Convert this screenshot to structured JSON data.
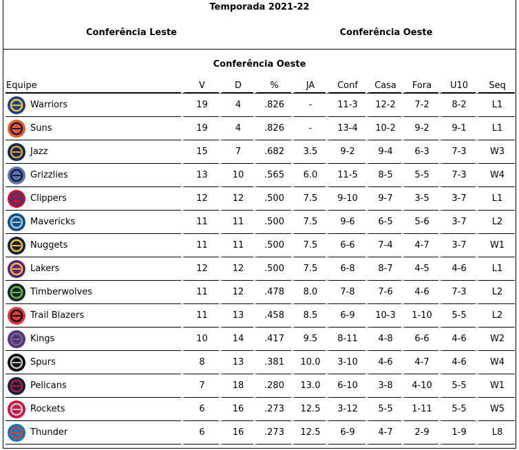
{
  "season_title": "Temporada 2021-22",
  "conference_tabs": {
    "east": "Conferência Leste",
    "west": "Conferência Oeste"
  },
  "section_title": "Conferência Oeste",
  "columns": [
    "Equipe",
    "V",
    "D",
    "%",
    "JA",
    "Conf",
    "Casa",
    "Fora",
    "U10",
    "Seq"
  ],
  "teams": [
    {
      "name": "Warriors",
      "logo": "warriors-logo",
      "color": "#1D428A",
      "accent": "#FFC72C",
      "v": "19",
      "d": "4",
      "pct": ".826",
      "ja": "-",
      "conf": "11-3",
      "casa": "12-2",
      "fora": "7-2",
      "u10": "8-2",
      "seq": "L1"
    },
    {
      "name": "Suns",
      "logo": "suns-logo",
      "color": "#E56020",
      "accent": "#1D1160",
      "v": "19",
      "d": "4",
      "pct": ".826",
      "ja": "-",
      "conf": "13-4",
      "casa": "10-2",
      "fora": "9-2",
      "u10": "9-1",
      "seq": "L1"
    },
    {
      "name": "Jazz",
      "logo": "jazz-logo",
      "color": "#002B5C",
      "accent": "#F9A01B",
      "v": "15",
      "d": "7",
      "pct": ".682",
      "ja": "3.5",
      "conf": "9-2",
      "casa": "9-4",
      "fora": "6-3",
      "u10": "7-3",
      "seq": "W3"
    },
    {
      "name": "Grizzlies",
      "logo": "grizzlies-logo",
      "color": "#5D76A9",
      "accent": "#12173F",
      "v": "13",
      "d": "10",
      "pct": ".565",
      "ja": "6.0",
      "conf": "11-5",
      "casa": "8-5",
      "fora": "5-5",
      "u10": "7-3",
      "seq": "W4"
    },
    {
      "name": "Clippers",
      "logo": "clippers-logo",
      "color": "#C8102E",
      "accent": "#1D428A",
      "v": "12",
      "d": "12",
      "pct": ".500",
      "ja": "7.5",
      "conf": "9-10",
      "casa": "9-7",
      "fora": "3-5",
      "u10": "3-7",
      "seq": "L1"
    },
    {
      "name": "Mavericks",
      "logo": "mavericks-logo",
      "color": "#00538C",
      "accent": "#B8C4CA",
      "v": "11",
      "d": "11",
      "pct": ".500",
      "ja": "7.5",
      "conf": "9-6",
      "casa": "6-5",
      "fora": "5-6",
      "u10": "3-7",
      "seq": "L2"
    },
    {
      "name": "Nuggets",
      "logo": "nuggets-logo",
      "color": "#0E2240",
      "accent": "#FEC524",
      "v": "11",
      "d": "11",
      "pct": ".500",
      "ja": "7.5",
      "conf": "6-6",
      "casa": "7-4",
      "fora": "4-7",
      "u10": "3-7",
      "seq": "W1"
    },
    {
      "name": "Lakers",
      "logo": "lakers-logo",
      "color": "#552583",
      "accent": "#FDB927",
      "v": "12",
      "d": "12",
      "pct": ".500",
      "ja": "7.5",
      "conf": "6-8",
      "casa": "8-7",
      "fora": "4-5",
      "u10": "4-6",
      "seq": "L1"
    },
    {
      "name": "Timberwolves",
      "logo": "timberwolves-logo",
      "color": "#0C2340",
      "accent": "#78BE20",
      "v": "11",
      "d": "12",
      "pct": ".478",
      "ja": "8.0",
      "conf": "7-8",
      "casa": "7-6",
      "fora": "4-6",
      "u10": "7-3",
      "seq": "L2"
    },
    {
      "name": "Trail Blazers",
      "logo": "trail-blazers-logo",
      "color": "#E03A3E",
      "accent": "#000000",
      "v": "11",
      "d": "13",
      "pct": ".458",
      "ja": "8.5",
      "conf": "6-9",
      "casa": "10-3",
      "fora": "1-10",
      "u10": "5-5",
      "seq": "L2"
    },
    {
      "name": "Kings",
      "logo": "kings-logo",
      "color": "#5A2D81",
      "accent": "#63727A",
      "v": "10",
      "d": "14",
      "pct": ".417",
      "ja": "9.5",
      "conf": "8-11",
      "casa": "4-8",
      "fora": "6-6",
      "u10": "4-6",
      "seq": "W2"
    },
    {
      "name": "Spurs",
      "logo": "spurs-logo",
      "color": "#000000",
      "accent": "#C4CED4",
      "v": "8",
      "d": "13",
      "pct": ".381",
      "ja": "10.0",
      "conf": "3-10",
      "casa": "4-6",
      "fora": "4-7",
      "u10": "4-6",
      "seq": "W4"
    },
    {
      "name": "Pelicans",
      "logo": "pelicans-logo",
      "color": "#0C2340",
      "accent": "#C8102E",
      "v": "7",
      "d": "18",
      "pct": ".280",
      "ja": "13.0",
      "conf": "6-10",
      "casa": "3-8",
      "fora": "4-10",
      "u10": "5-5",
      "seq": "W1"
    },
    {
      "name": "Rockets",
      "logo": "rockets-logo",
      "color": "#CE1141",
      "accent": "#C4CED4",
      "v": "6",
      "d": "16",
      "pct": ".273",
      "ja": "12.5",
      "conf": "3-12",
      "casa": "5-5",
      "fora": "1-11",
      "u10": "5-5",
      "seq": "W5"
    },
    {
      "name": "Thunder",
      "logo": "thunder-logo",
      "color": "#007AC1",
      "accent": "#EF3B24",
      "v": "6",
      "d": "16",
      "pct": ".273",
      "ja": "12.5",
      "conf": "6-9",
      "casa": "4-7",
      "fora": "2-9",
      "u10": "1-9",
      "seq": "L8"
    }
  ]
}
